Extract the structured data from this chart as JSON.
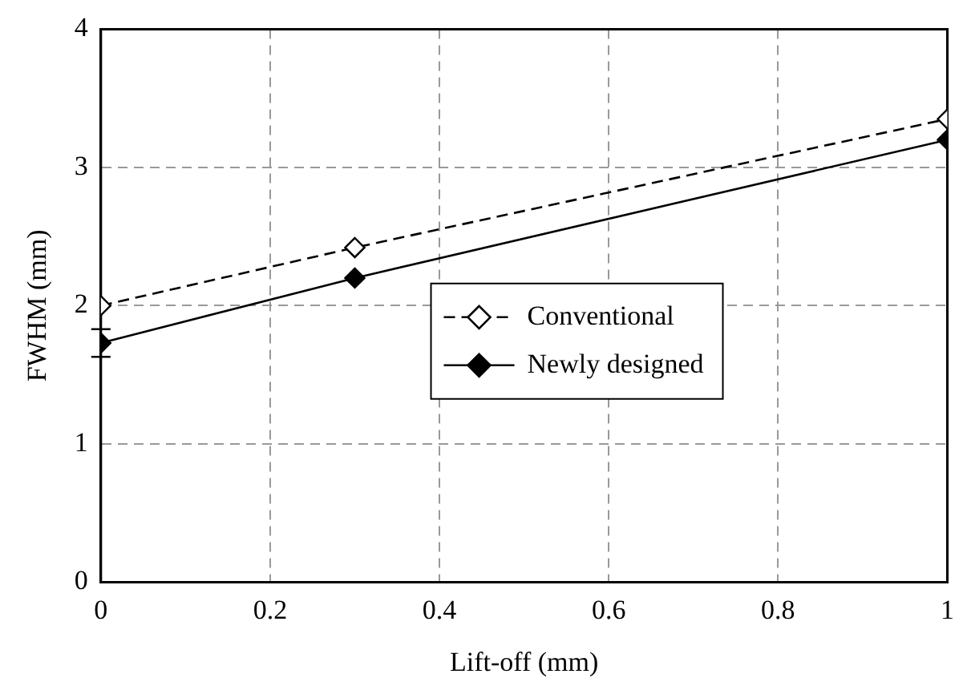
{
  "chart_data": {
    "type": "line",
    "xlabel": "Lift-off (mm)",
    "ylabel": "FWHM (mm)",
    "x": [
      0,
      0.3,
      1
    ],
    "series": [
      {
        "name": "Conventional",
        "color": "#000000",
        "values": [
          2.0,
          2.42,
          3.35
        ],
        "marker": "diamond",
        "line_style": "dashed"
      },
      {
        "name": "Newly designed",
        "color": "#000000",
        "values": [
          1.73,
          2.2,
          3.2
        ],
        "marker": "diamond",
        "line_style": "solid",
        "errors": [
          0.1,
          null,
          null
        ]
      }
    ],
    "xlim": [
      0,
      1
    ],
    "xticks": [
      0,
      0.2,
      0.4,
      0.6,
      0.8,
      1
    ],
    "ylim": [
      0,
      4
    ],
    "yticks": [
      0,
      1,
      2,
      3,
      4
    ],
    "grid": true,
    "legend": "right"
  }
}
